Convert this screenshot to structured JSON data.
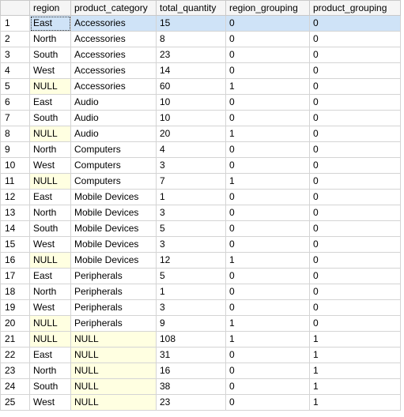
{
  "columns": [
    "region",
    "product_category",
    "total_quantity",
    "region_grouping",
    "product_grouping"
  ],
  "rows": [
    {
      "n": "1",
      "cells": [
        "East",
        "Accessories",
        "15",
        "0",
        "0"
      ]
    },
    {
      "n": "2",
      "cells": [
        "North",
        "Accessories",
        "8",
        "0",
        "0"
      ]
    },
    {
      "n": "3",
      "cells": [
        "South",
        "Accessories",
        "23",
        "0",
        "0"
      ]
    },
    {
      "n": "4",
      "cells": [
        "West",
        "Accessories",
        "14",
        "0",
        "0"
      ]
    },
    {
      "n": "5",
      "cells": [
        "NULL",
        "Accessories",
        "60",
        "1",
        "0"
      ]
    },
    {
      "n": "6",
      "cells": [
        "East",
        "Audio",
        "10",
        "0",
        "0"
      ]
    },
    {
      "n": "7",
      "cells": [
        "South",
        "Audio",
        "10",
        "0",
        "0"
      ]
    },
    {
      "n": "8",
      "cells": [
        "NULL",
        "Audio",
        "20",
        "1",
        "0"
      ]
    },
    {
      "n": "9",
      "cells": [
        "North",
        "Computers",
        "4",
        "0",
        "0"
      ]
    },
    {
      "n": "10",
      "cells": [
        "West",
        "Computers",
        "3",
        "0",
        "0"
      ]
    },
    {
      "n": "11",
      "cells": [
        "NULL",
        "Computers",
        "7",
        "1",
        "0"
      ]
    },
    {
      "n": "12",
      "cells": [
        "East",
        "Mobile Devices",
        "1",
        "0",
        "0"
      ]
    },
    {
      "n": "13",
      "cells": [
        "North",
        "Mobile Devices",
        "3",
        "0",
        "0"
      ]
    },
    {
      "n": "14",
      "cells": [
        "South",
        "Mobile Devices",
        "5",
        "0",
        "0"
      ]
    },
    {
      "n": "15",
      "cells": [
        "West",
        "Mobile Devices",
        "3",
        "0",
        "0"
      ]
    },
    {
      "n": "16",
      "cells": [
        "NULL",
        "Mobile Devices",
        "12",
        "1",
        "0"
      ]
    },
    {
      "n": "17",
      "cells": [
        "East",
        "Peripherals",
        "5",
        "0",
        "0"
      ]
    },
    {
      "n": "18",
      "cells": [
        "North",
        "Peripherals",
        "1",
        "0",
        "0"
      ]
    },
    {
      "n": "19",
      "cells": [
        "West",
        "Peripherals",
        "3",
        "0",
        "0"
      ]
    },
    {
      "n": "20",
      "cells": [
        "NULL",
        "Peripherals",
        "9",
        "1",
        "0"
      ]
    },
    {
      "n": "21",
      "cells": [
        "NULL",
        "NULL",
        "108",
        "1",
        "1"
      ]
    },
    {
      "n": "22",
      "cells": [
        "East",
        "NULL",
        "31",
        "0",
        "1"
      ]
    },
    {
      "n": "23",
      "cells": [
        "North",
        "NULL",
        "16",
        "0",
        "1"
      ]
    },
    {
      "n": "24",
      "cells": [
        "South",
        "NULL",
        "38",
        "0",
        "1"
      ]
    },
    {
      "n": "25",
      "cells": [
        "West",
        "NULL",
        "23",
        "0",
        "1"
      ]
    }
  ],
  "selected_row": "1",
  "colors": {
    "null_cell": "#ffffe1",
    "selection": "#cfe3f7",
    "header": "#f5f5f5",
    "grid_line": "#d4d4d4"
  }
}
